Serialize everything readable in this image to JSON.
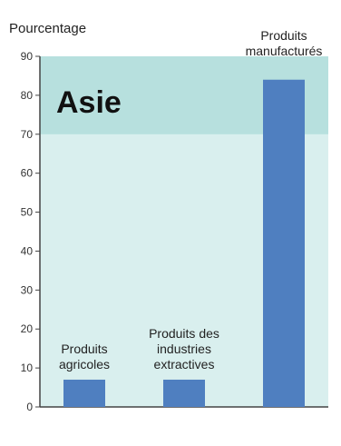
{
  "chart_data": {
    "type": "bar",
    "title": "",
    "region_label": "Asie",
    "ylabel": "Pourcentage",
    "xlabel": "",
    "ylim": [
      0,
      90
    ],
    "yticks": [
      0,
      10,
      20,
      30,
      40,
      50,
      60,
      70,
      80,
      90
    ],
    "categories": [
      [
        "Produits",
        "agricoles"
      ],
      [
        "Produits des",
        "industries",
        "extractives"
      ],
      [
        "Produits",
        "manufacturés"
      ]
    ],
    "values": [
      7,
      7,
      84
    ],
    "grid": false,
    "colors": {
      "bar": "#4f7fc0",
      "band_light": "#d9efee",
      "band_dark": "#b7e0de",
      "axis": "#444444"
    }
  }
}
